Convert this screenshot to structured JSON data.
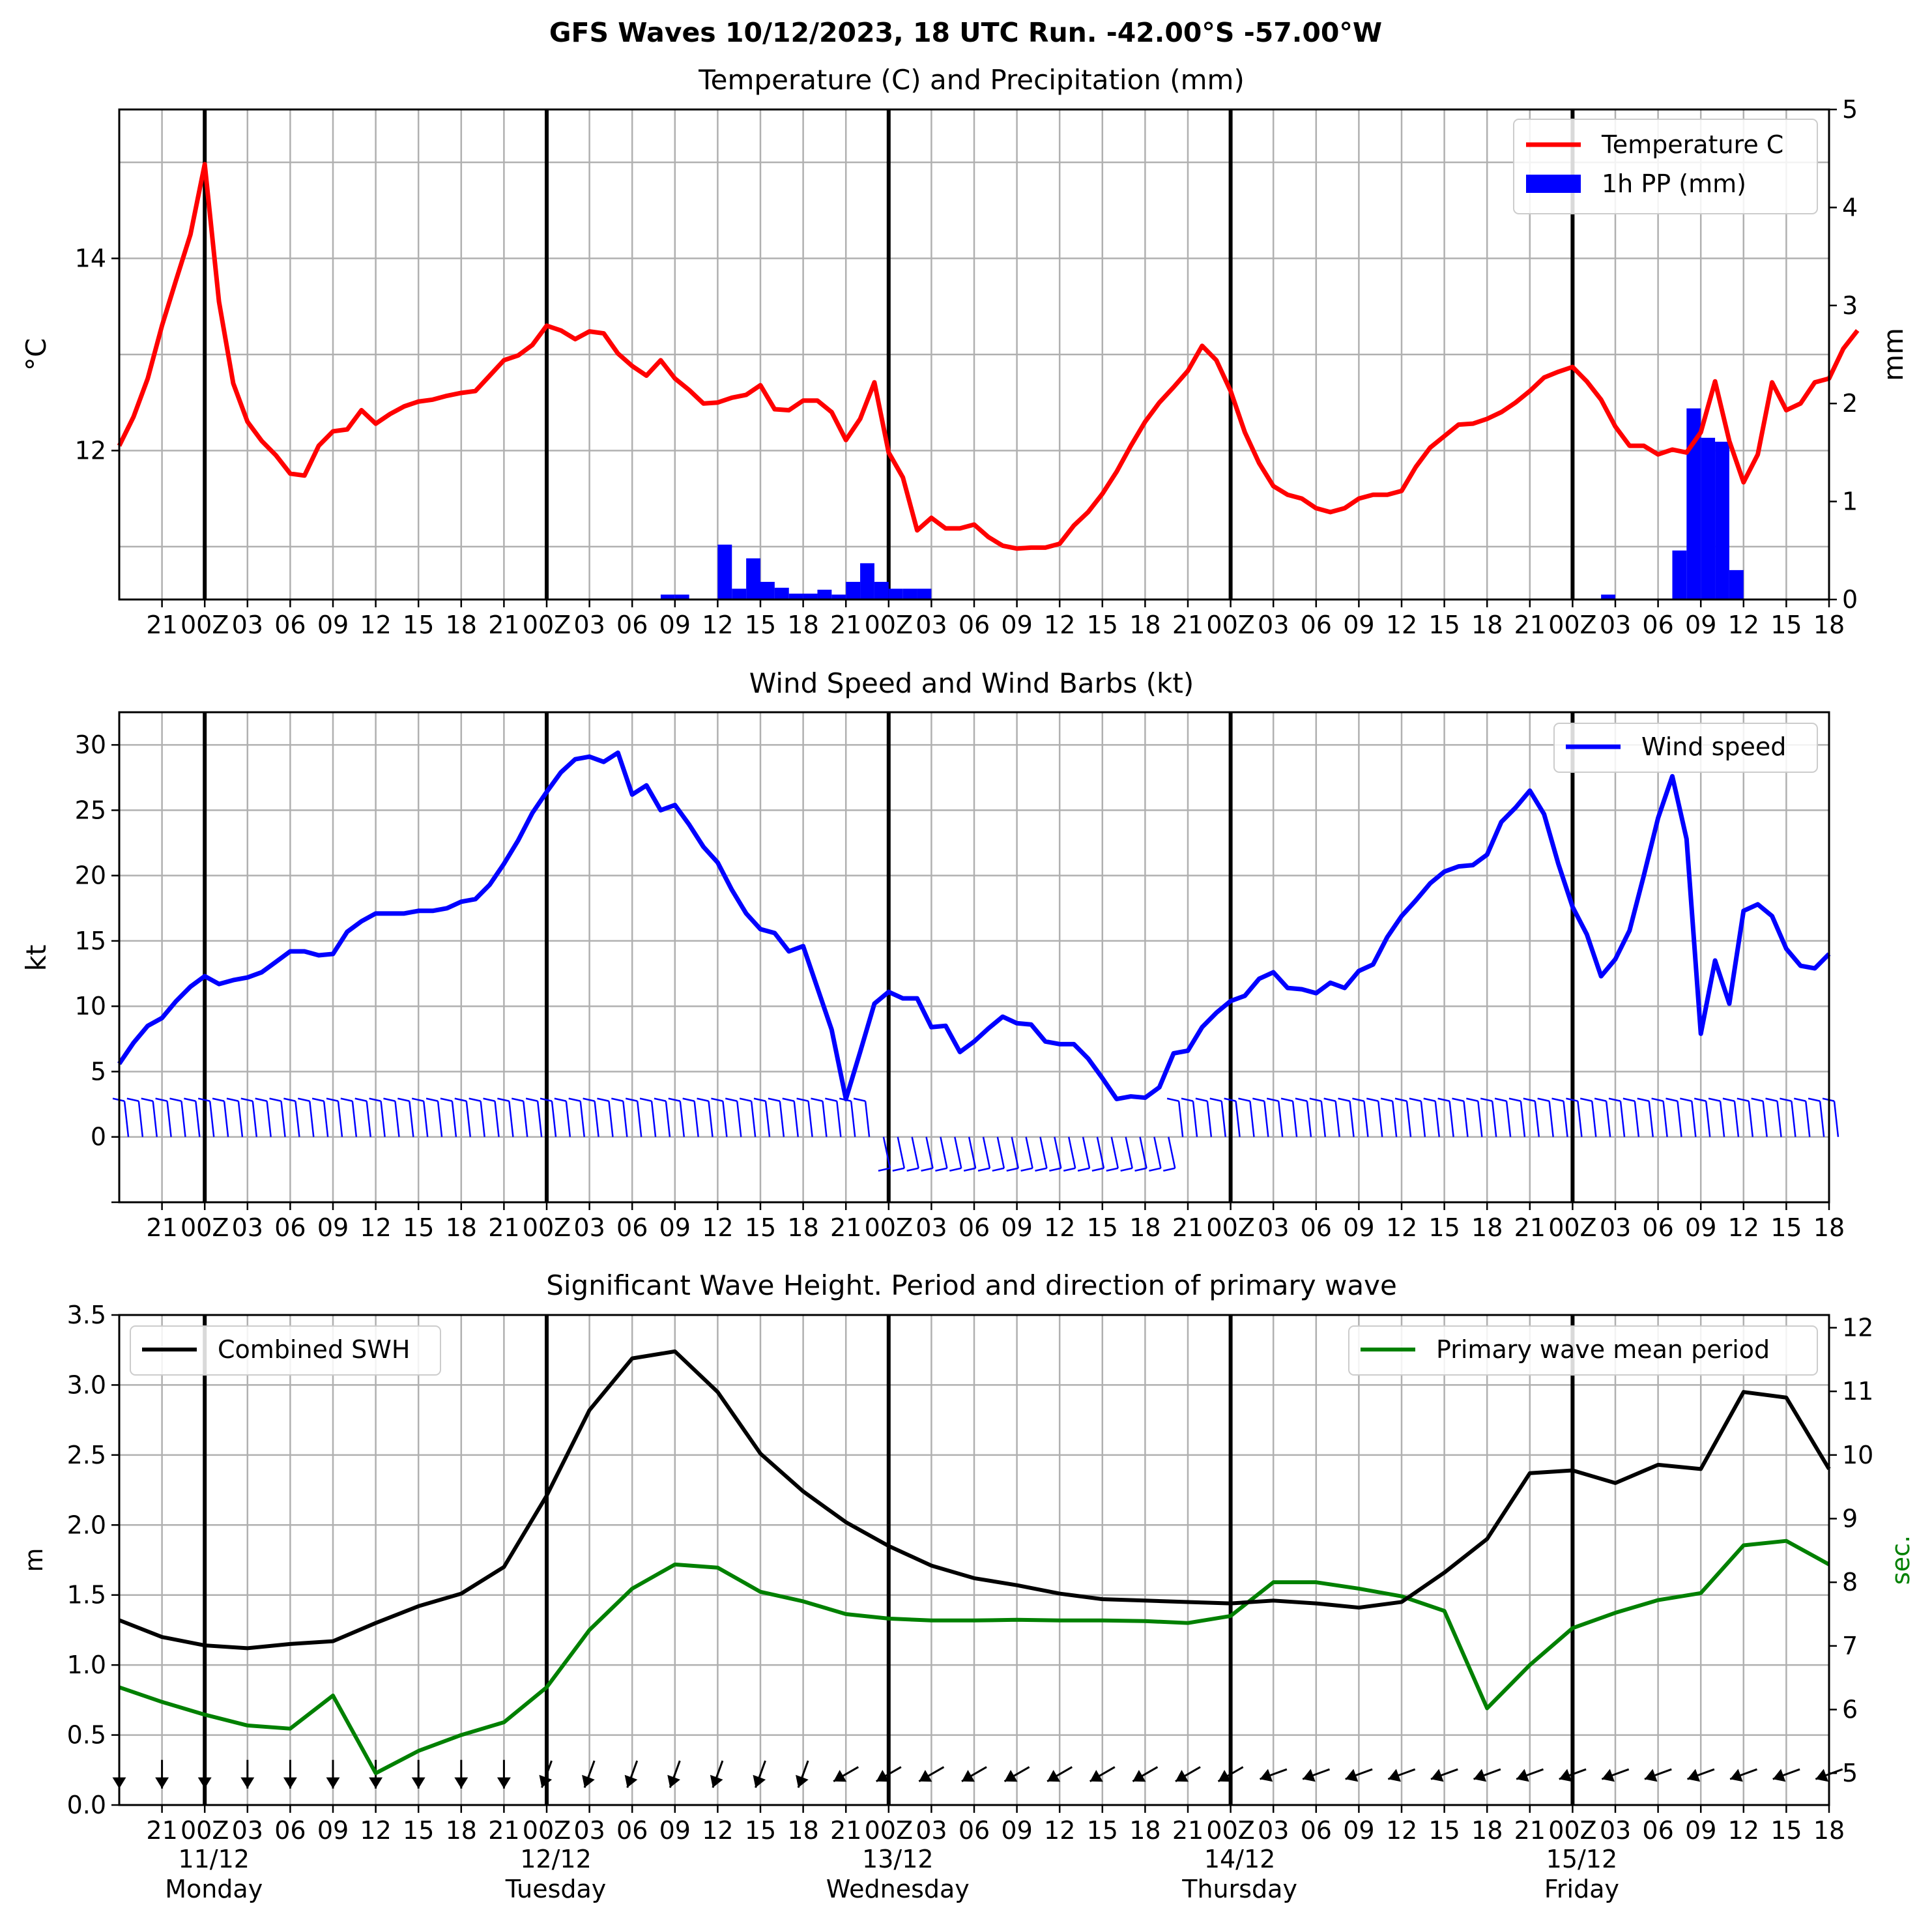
{
  "title": "GFS Waves 10/12/2023, 18 UTC Run. -42.00°S -57.00°W",
  "colors": {
    "temperature": "#ff0000",
    "precip": "#0000ff",
    "wind": "#0000ff",
    "swh": "#000000",
    "period": "#008000",
    "grid": "#b0b0b0"
  },
  "hour_tick_labels": [
    "21",
    "00Z",
    "03",
    "06",
    "09",
    "12",
    "15",
    "18",
    "21",
    "00Z",
    "03",
    "06",
    "09",
    "12",
    "15",
    "18",
    "21",
    "00Z",
    "03",
    "06",
    "09",
    "12",
    "15",
    "18",
    "21",
    "00Z",
    "03",
    "06",
    "09",
    "12",
    "15",
    "18",
    "21",
    "00Z",
    "03",
    "06",
    "09",
    "12",
    "15",
    "18"
  ],
  "day_labels": [
    {
      "date": "11/12",
      "weekday": "Monday"
    },
    {
      "date": "12/12",
      "weekday": "Tuesday"
    },
    {
      "date": "13/12",
      "weekday": "Wednesday"
    },
    {
      "date": "14/12",
      "weekday": "Thursday"
    },
    {
      "date": "15/12",
      "weekday": "Friday"
    }
  ],
  "chart_data": [
    {
      "type": "line",
      "title": "Temperature (C) and Precipitation (mm)",
      "x_axis": {
        "start": "2023-12-10 18 UTC",
        "end": "2023-12-15 18 UTC",
        "tick_step_hours": 3,
        "day_lines": [
          "2023-12-11 00Z",
          "2023-12-12 00Z",
          "2023-12-13 00Z",
          "2023-12-14 00Z",
          "2023-12-15 00Z"
        ],
        "grid": true
      },
      "ylabel": "°C",
      "ylabel_right": "mm",
      "ylim": [
        10.45,
        15.55
      ],
      "ylim_right": [
        0,
        5
      ],
      "yticks": [
        "12",
        "14"
      ],
      "yticks_right": [
        "0",
        "1",
        "2",
        "3",
        "4",
        "5"
      ],
      "legend": {
        "position": "top-right",
        "entries": [
          "Temperature C",
          "1h PP (mm)"
        ]
      },
      "series": [
        {
          "name": "Temperature C",
          "kind": "line",
          "values": [
            12.05,
            12.35,
            12.75,
            13.3,
            13.78,
            14.25,
            14.98,
            13.55,
            12.7,
            12.3,
            12.1,
            11.95,
            11.76,
            11.74,
            12.05,
            12.2,
            12.22,
            12.42,
            12.28,
            12.38,
            12.46,
            12.51,
            12.53,
            12.57,
            12.6,
            12.62,
            12.78,
            12.94,
            12.99,
            13.1,
            13.3,
            13.25,
            13.16,
            13.24,
            13.22,
            13.01,
            12.88,
            12.78,
            12.94,
            12.75,
            12.63,
            12.49,
            12.5,
            12.55,
            12.58,
            12.68,
            12.43,
            12.42,
            12.52,
            12.52,
            12.4,
            12.11,
            12.33,
            12.71,
            11.98,
            11.72,
            11.17,
            11.3,
            11.19,
            11.19,
            11.23,
            11.1,
            11.01,
            10.98,
            10.99,
            10.99,
            11.03,
            11.22,
            11.36,
            11.55,
            11.78,
            12.05,
            12.3,
            12.5,
            12.66,
            12.83,
            13.09,
            12.94,
            12.62,
            12.19,
            11.87,
            11.63,
            11.54,
            11.5,
            11.4,
            11.36,
            11.4,
            11.5,
            11.54,
            11.54,
            11.58,
            11.83,
            12.03,
            12.15,
            12.27,
            12.28,
            12.33,
            12.4,
            12.5,
            12.62,
            12.76,
            12.82,
            12.87,
            12.72,
            12.53,
            12.25,
            12.05,
            12.05,
            11.96,
            12.01,
            11.98,
            12.19,
            12.72,
            12.1,
            11.67,
            11.96,
            12.71,
            12.42,
            12.49,
            12.71,
            12.75,
            13.06,
            13.25
          ]
        },
        {
          "name": "1h PP (mm)",
          "kind": "bar",
          "x_hours_from_start": [
            38.5,
            39.5,
            42.5,
            43.5,
            44.5,
            45.5,
            46.5,
            47.5,
            48.5,
            49.5,
            50.5,
            51.5,
            52.5,
            53.5,
            54.5,
            55.5,
            56.5,
            104.5,
            109.5,
            110.5,
            111.5,
            112.5,
            113.5
          ],
          "values": [
            0.05,
            0.05,
            0.56,
            0.11,
            0.42,
            0.18,
            0.12,
            0.06,
            0.06,
            0.1,
            0.05,
            0.18,
            0.37,
            0.18,
            0.11,
            0.11,
            0.11,
            0.05,
            0.5,
            1.95,
            1.65,
            1.61,
            0.3
          ]
        }
      ]
    },
    {
      "type": "line",
      "title": "Wind Speed and Wind Barbs (kt)",
      "x_axis": {
        "start": "2023-12-10 18 UTC",
        "end": "2023-12-15 18 UTC",
        "tick_step_hours": 3,
        "grid": true
      },
      "ylabel": "kt",
      "ylim": [
        -5,
        32.5
      ],
      "yticks": [
        "0",
        "5",
        "10",
        "15",
        "20",
        "25",
        "30"
      ],
      "legend": {
        "position": "top-right",
        "entries": [
          "Wind speed"
        ]
      },
      "series": [
        {
          "name": "Wind speed",
          "kind": "line",
          "values": [
            5.6,
            7.2,
            8.5,
            9.1,
            10.4,
            11.5,
            12.3,
            11.7,
            12.0,
            12.2,
            12.6,
            13.4,
            14.2,
            14.2,
            13.9,
            14.0,
            15.7,
            16.5,
            17.1,
            17.1,
            17.1,
            17.3,
            17.3,
            17.5,
            18.0,
            18.2,
            19.3,
            20.9,
            22.7,
            24.8,
            26.4,
            27.9,
            28.9,
            29.1,
            28.7,
            29.4,
            26.2,
            26.9,
            25.0,
            25.4,
            23.9,
            22.2,
            21.0,
            18.9,
            17.1,
            15.9,
            15.6,
            14.2,
            14.6,
            11.4,
            8.2,
            2.9,
            6.5,
            10.2,
            11.1,
            10.6,
            10.6,
            8.4,
            8.5,
            6.5,
            7.3,
            8.3,
            9.2,
            8.7,
            8.6,
            7.3,
            7.1,
            7.1,
            6.0,
            4.5,
            2.9,
            3.1,
            3.0,
            3.8,
            6.4,
            6.6,
            8.4,
            9.5,
            10.4,
            10.8,
            12.1,
            12.6,
            11.4,
            11.3,
            11.0,
            11.8,
            11.4,
            12.7,
            13.2,
            15.3,
            16.9,
            18.1,
            19.4,
            20.3,
            20.7,
            20.8,
            21.6,
            24.1,
            25.2,
            26.5,
            24.7,
            20.9,
            17.6,
            15.5,
            12.3,
            13.6,
            15.8,
            20.0,
            24.4,
            27.6,
            22.8,
            7.9,
            13.5,
            10.2,
            17.3,
            17.8,
            16.9,
            14.4,
            13.1,
            12.9,
            14.0
          ]
        }
      ],
      "barbs": "wind barbs along the zero line, one per forecast hour"
    },
    {
      "type": "line",
      "title": "Significant Wave Height. Period and direction of primary wave",
      "x_axis": {
        "start": "2023-12-10 18 UTC",
        "end": "2023-12-15 18 UTC",
        "tick_step_hours": 3,
        "grid": true
      },
      "ylabel": "m",
      "ylabel_right": "sec.",
      "ylim": [
        0,
        3.5
      ],
      "ylim_right": [
        4.5,
        12.2
      ],
      "yticks": [
        "0.0",
        "0.5",
        "1.0",
        "1.5",
        "2.0",
        "2.5",
        "3.0",
        "3.5"
      ],
      "yticks_right": [
        "5",
        "6",
        "7",
        "8",
        "9",
        "10",
        "11",
        "12"
      ],
      "legend": [
        {
          "position": "top-left",
          "entries": [
            "Combined SWH"
          ]
        },
        {
          "position": "top-right",
          "entries": [
            "Primary wave mean period"
          ]
        }
      ],
      "series": [
        {
          "name": "Combined SWH",
          "kind": "line",
          "x_step_hours": 3,
          "values": [
            1.32,
            1.2,
            1.14,
            1.12,
            1.15,
            1.17,
            1.3,
            1.42,
            1.51,
            1.7,
            2.21,
            2.82,
            3.19,
            3.24,
            2.95,
            2.51,
            2.24,
            2.02,
            1.85,
            1.71,
            1.62,
            1.57,
            1.51,
            1.47,
            1.46,
            1.45,
            1.44,
            1.46,
            1.44,
            1.41,
            1.45,
            1.66,
            1.9,
            2.37,
            2.39,
            2.3,
            2.43,
            2.4,
            2.95,
            2.91,
            2.4
          ]
        },
        {
          "name": "Primary wave mean period",
          "kind": "line",
          "axis": "right",
          "x_step_hours": 3,
          "values": [
            6.35,
            6.12,
            5.92,
            5.75,
            5.7,
            6.22,
            5.0,
            5.35,
            5.6,
            5.8,
            6.35,
            7.25,
            7.9,
            8.28,
            8.23,
            7.85,
            7.7,
            7.5,
            7.43,
            7.4,
            7.4,
            7.41,
            7.4,
            7.4,
            7.39,
            7.36,
            7.47,
            8.0,
            8.0,
            7.9,
            7.78,
            7.55,
            6.02,
            6.7,
            7.28,
            7.52,
            7.72,
            7.83,
            8.58,
            8.65,
            8.28
          ]
        }
      ],
      "direction_arrows": "primary wave direction arrows along the bottom, one every 3 hours"
    }
  ]
}
